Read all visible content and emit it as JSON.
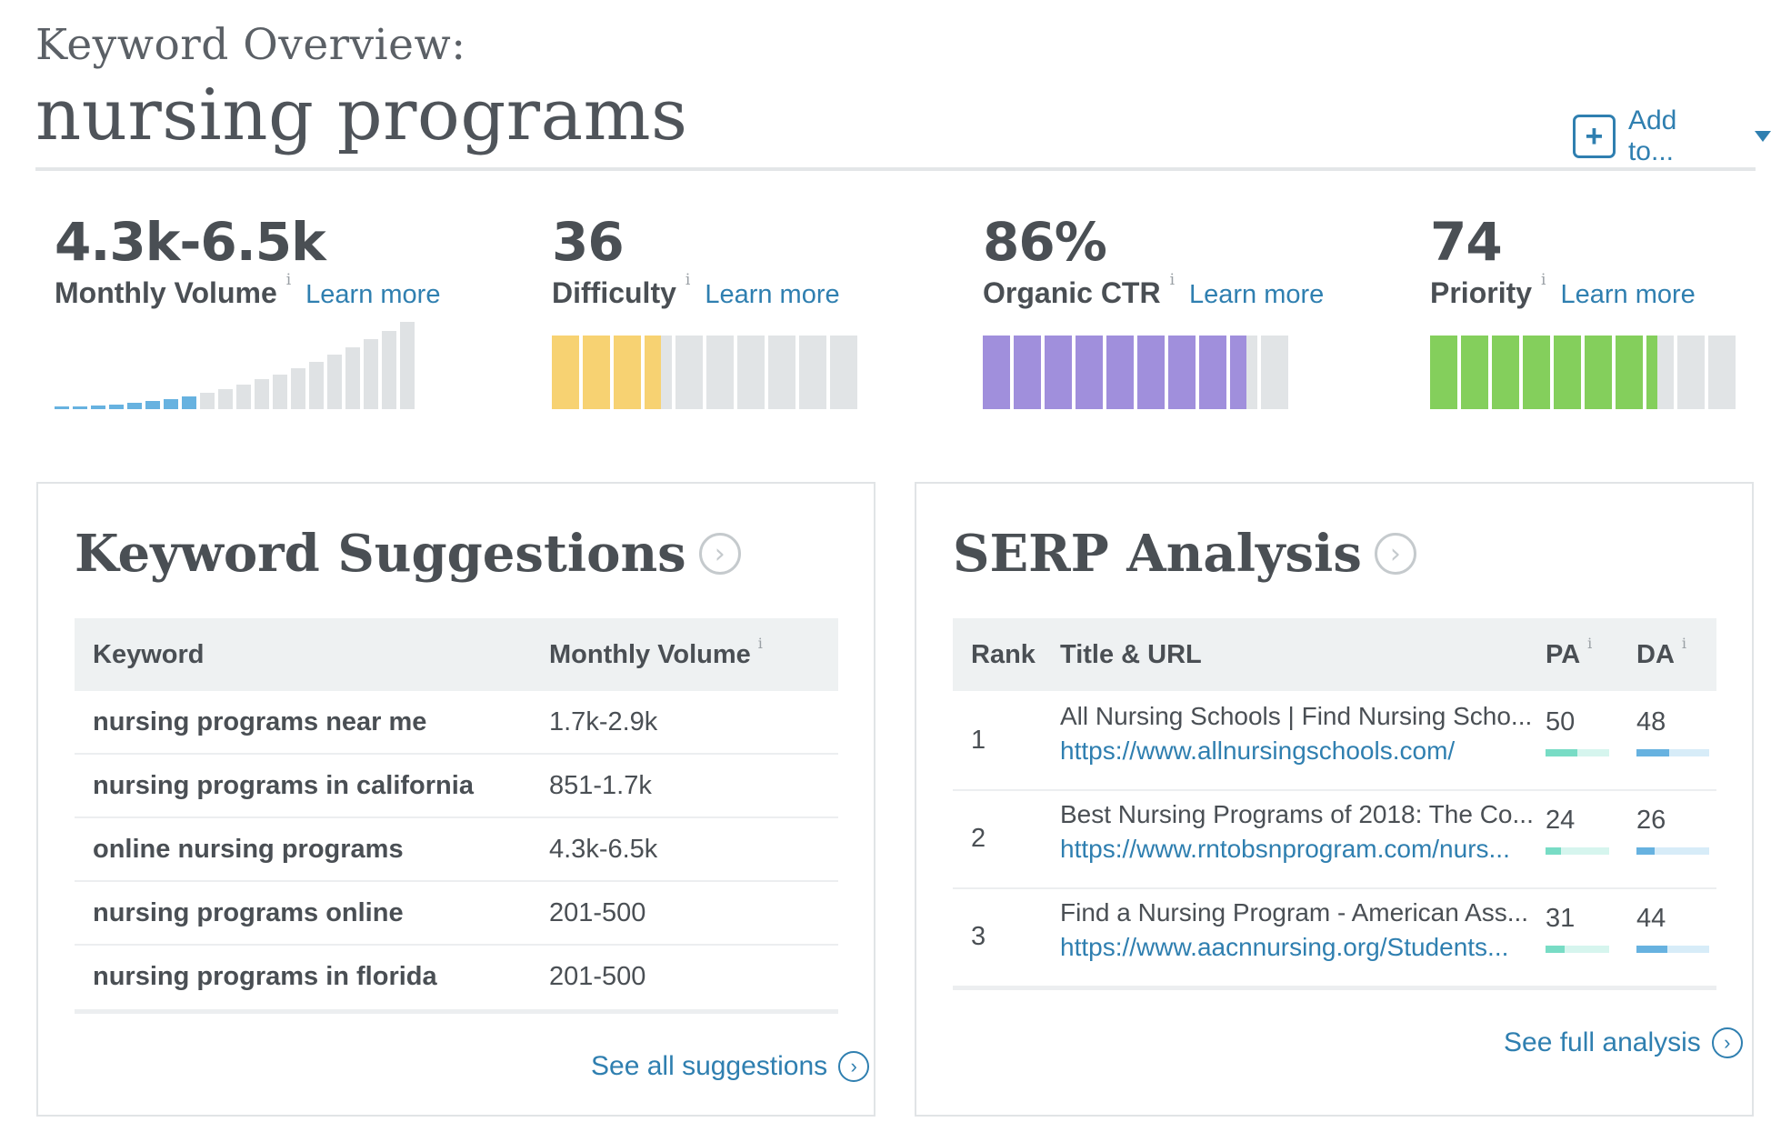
{
  "header": {
    "eyebrow": "Keyword Overview:",
    "keyword": "nursing programs",
    "add_to": "Add to...",
    "add_icon": "+"
  },
  "metrics": [
    {
      "value": "4.3k-6.5k",
      "label": "Monthly Volume",
      "info": "i",
      "learn": "Learn more"
    },
    {
      "value": "36",
      "label": "Difficulty",
      "info": "i",
      "learn": "Learn more"
    },
    {
      "value": "86%",
      "label": "Organic CTR",
      "info": "i",
      "learn": "Learn more"
    },
    {
      "value": "74",
      "label": "Priority",
      "info": "i",
      "learn": "Learn more"
    }
  ],
  "bars": {
    "volume_filled_bars": 8,
    "volume_total_bars": 20,
    "difficulty": {
      "filled": 3.6,
      "total": 10,
      "color": "#f7d272"
    },
    "ctr": {
      "filled": 8.6,
      "total": 10,
      "color": "#a08fdc"
    },
    "priority": {
      "filled": 7.4,
      "total": 10,
      "color": "#84cf5c"
    },
    "empty_color": "#e1e4e6"
  },
  "suggestions": {
    "title": "Keyword Suggestions",
    "col_keyword": "Keyword",
    "col_volume": "Monthly Volume",
    "info": "i",
    "rows": [
      {
        "keyword": "nursing programs near me",
        "volume": "1.7k-2.9k"
      },
      {
        "keyword": "nursing programs in california",
        "volume": "851-1.7k"
      },
      {
        "keyword": "online nursing programs",
        "volume": "4.3k-6.5k"
      },
      {
        "keyword": "nursing programs online",
        "volume": "201-500"
      },
      {
        "keyword": "nursing programs in florida",
        "volume": "201-500"
      }
    ],
    "see_all": "See all suggestions"
  },
  "serp": {
    "title": "SERP Analysis",
    "col_rank": "Rank",
    "col_title": "Title & URL",
    "col_pa": "PA",
    "col_da": "DA",
    "info": "i",
    "rows": [
      {
        "rank": "1",
        "title": "All Nursing Schools | Find Nursing Scho...",
        "url": "https://www.allnursingschools.com/",
        "pa": "50",
        "da": "48",
        "pa_fill": 0.5,
        "da_fill": 0.45
      },
      {
        "rank": "2",
        "title": "Best Nursing Programs of 2018: The Co...",
        "url": "https://www.rntobsnprogram.com/nurs...",
        "pa": "24",
        "da": "26",
        "pa_fill": 0.24,
        "da_fill": 0.25
      },
      {
        "rank": "3",
        "title": "Find a Nursing Program - American Ass...",
        "url": "https://www.aacnnursing.org/Students...",
        "pa": "31",
        "da": "44",
        "pa_fill": 0.3,
        "da_fill": 0.43
      }
    ],
    "see_full": "See full analysis",
    "pa_color": "#78dcc5",
    "pa_track": "#d6f5ee",
    "da_color": "#67b2e0",
    "da_track": "#d7ecf8"
  }
}
